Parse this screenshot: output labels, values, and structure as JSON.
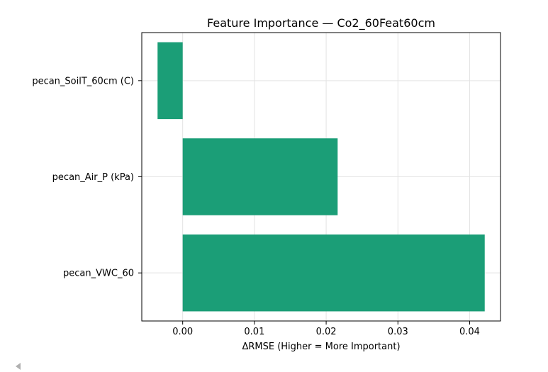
{
  "chart_data": {
    "type": "bar",
    "orientation": "horizontal",
    "title": "Feature Importance — Co2_60Feat60cm",
    "xlabel": "ΔRMSE (Higher = More Important)",
    "ylabel": "",
    "categories": [
      "pecan_SoilT_60cm (C)",
      "pecan_Air_P (kPa)",
      "pecan_VWC_60"
    ],
    "values": [
      -0.0035,
      0.0216,
      0.0421
    ],
    "xlim": [
      -0.0057,
      0.0443
    ],
    "xticks": [
      0.0,
      0.01,
      0.02,
      0.03,
      0.04
    ],
    "xtick_labels": [
      "0.00",
      "0.01",
      "0.02",
      "0.03",
      "0.04"
    ],
    "grid": true,
    "bar_color": "#1b9e77"
  }
}
